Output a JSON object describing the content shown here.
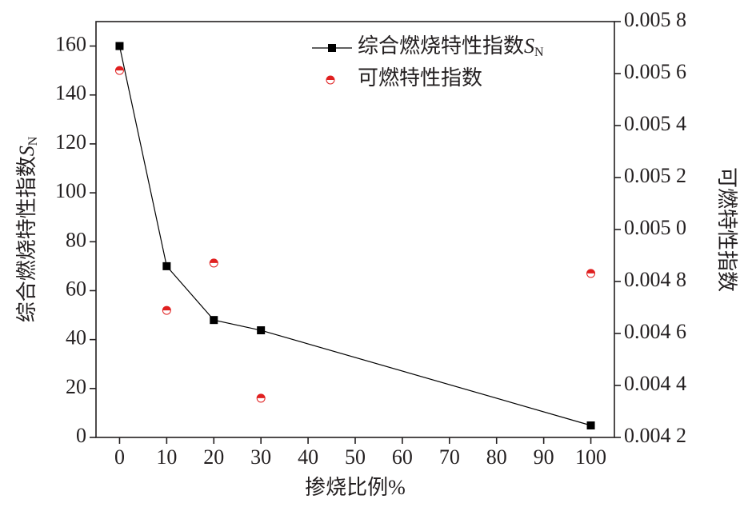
{
  "chart_data": {
    "type": "line",
    "xlabel": "掺烧比例%",
    "ylabel": {
      "text": "综合燃烧特性指数",
      "symbol": "S",
      "subscript": "N"
    },
    "y2label": "可燃特性指数",
    "x": [
      0,
      10,
      20,
      30,
      100
    ],
    "series": [
      {
        "name": "综合燃烧特性指数",
        "name_symbol": "S",
        "name_subscript": "N",
        "color": "#000000",
        "marker": "square",
        "line": true,
        "values": [
          160,
          70,
          48,
          43.8,
          4.9
        ]
      },
      {
        "name": "可燃特性指数",
        "color": "#e02020",
        "marker": "half-circle",
        "line": false,
        "axis": "y2",
        "values": [
          0.005612,
          0.004689,
          0.004871,
          0.004351,
          0.004831
        ]
      }
    ],
    "xlim": [
      -5,
      105
    ],
    "xticks": [
      0,
      10,
      20,
      30,
      40,
      50,
      60,
      70,
      80,
      90,
      100
    ],
    "ylim": [
      0,
      170
    ],
    "yticks": [
      0,
      20,
      40,
      60,
      80,
      100,
      120,
      140,
      160
    ],
    "y2lim": [
      0.0042,
      0.0058
    ],
    "y2ticks": [
      {
        "value": 0.0042,
        "label": "0.004 2"
      },
      {
        "value": 0.0044,
        "label": "0.004 4"
      },
      {
        "value": 0.0046,
        "label": "0.004 6"
      },
      {
        "value": 0.0048,
        "label": "0.004 8"
      },
      {
        "value": 0.005,
        "label": "0.005 0"
      },
      {
        "value": 0.0052,
        "label": "0.005 2"
      },
      {
        "value": 0.0054,
        "label": "0.005 4"
      },
      {
        "value": 0.0056,
        "label": "0.005 6"
      },
      {
        "value": 0.0058,
        "label": "0.005 8"
      }
    ],
    "legend": "top-right",
    "grid": false
  }
}
